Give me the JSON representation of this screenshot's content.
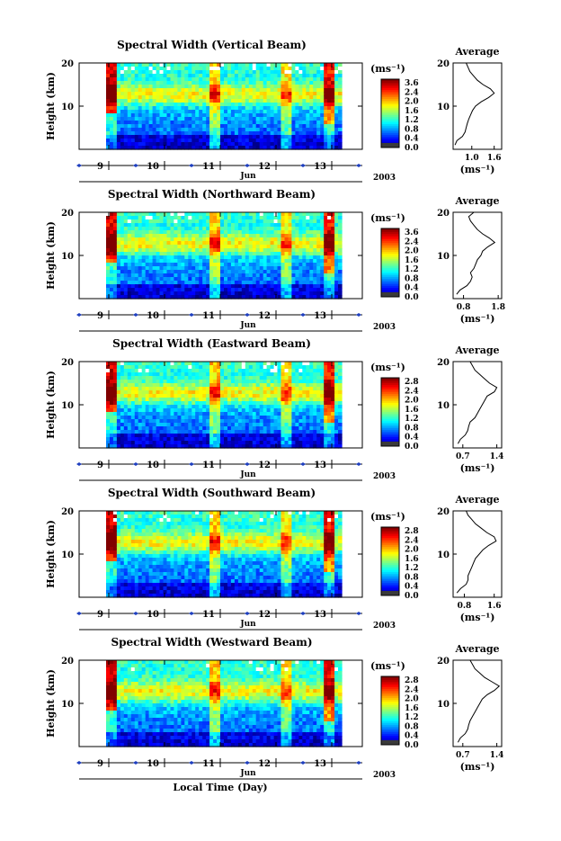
{
  "figure": {
    "xlabel_bottom": "Local Time (Day)",
    "month_label": "Jun",
    "year_label": "2003",
    "ylabel": "Height (km)",
    "colorbar_unit": "(ms⁻¹)",
    "average_title": "Average",
    "average_xlabel": "(ms⁻¹)"
  },
  "chart_data": [
    {
      "type": "heatmap",
      "title": "Spectral Width (Vertical Beam)",
      "ylabel": "Height (km)",
      "x_tick_labels": [
        "9",
        "10",
        "11",
        "12",
        "13"
      ],
      "y_tick_labels": [
        "10",
        "20"
      ],
      "colorbar_ticks": [
        "3.6",
        "2.4",
        "2.0",
        "1.6",
        "1.2",
        "0.8",
        "0.4",
        "0.0"
      ],
      "average": {
        "title": "Average",
        "xlabel": "(ms⁻¹)",
        "x_tick_labels": [
          "1.0",
          "1.6"
        ],
        "xlim": [
          0.5,
          1.8
        ],
        "heights": [
          1,
          2,
          3,
          4,
          5,
          6,
          7,
          8,
          9,
          10,
          11,
          12,
          13,
          14,
          15,
          16,
          17,
          18,
          19,
          20
        ],
        "values": [
          0.55,
          0.6,
          0.75,
          0.82,
          0.85,
          0.88,
          0.92,
          0.97,
          1.02,
          1.1,
          1.25,
          1.45,
          1.6,
          1.5,
          1.3,
          1.15,
          1.05,
          0.95,
          0.9,
          0.85
        ]
      }
    },
    {
      "type": "heatmap",
      "title": "Spectral Width (Northward Beam)",
      "ylabel": "Height (km)",
      "x_tick_labels": [
        "9",
        "10",
        "11",
        "12",
        "13"
      ],
      "y_tick_labels": [
        "10",
        "20"
      ],
      "colorbar_ticks": [
        "3.6",
        "2.4",
        "2.0",
        "1.6",
        "1.2",
        "0.8",
        "0.4",
        "0.0"
      ],
      "average": {
        "title": "Average",
        "xlabel": "(ms⁻¹)",
        "x_tick_labels": [
          "0.8",
          "1.8"
        ],
        "xlim": [
          0.5,
          1.9
        ],
        "heights": [
          1,
          2,
          3,
          4,
          5,
          6,
          7,
          8,
          9,
          10,
          11,
          12,
          13,
          14,
          15,
          16,
          17,
          18,
          19,
          20
        ],
        "values": [
          0.6,
          0.7,
          0.9,
          1.0,
          1.05,
          1.0,
          1.1,
          1.15,
          1.2,
          1.3,
          1.35,
          1.5,
          1.7,
          1.55,
          1.35,
          1.2,
          1.1,
          1.0,
          0.95,
          1.1
        ]
      }
    },
    {
      "type": "heatmap",
      "title": "Spectral Width (Eastward Beam)",
      "ylabel": "Height (km)",
      "x_tick_labels": [
        "9",
        "10",
        "11",
        "12",
        "13"
      ],
      "y_tick_labels": [
        "10",
        "20"
      ],
      "colorbar_ticks": [
        "2.8",
        "2.4",
        "2.0",
        "1.6",
        "1.2",
        "0.8",
        "0.4",
        "0.0"
      ],
      "average": {
        "title": "Average",
        "xlabel": "(ms⁻¹)",
        "x_tick_labels": [
          "0.7",
          "1.4"
        ],
        "xlim": [
          0.5,
          1.5
        ],
        "heights": [
          1,
          2,
          3,
          4,
          5,
          6,
          7,
          8,
          9,
          10,
          11,
          12,
          13,
          14,
          15,
          16,
          17,
          18,
          19,
          20
        ],
        "values": [
          0.6,
          0.65,
          0.75,
          0.8,
          0.82,
          0.85,
          0.95,
          1.0,
          1.05,
          1.1,
          1.15,
          1.2,
          1.35,
          1.4,
          1.25,
          1.15,
          1.05,
          0.95,
          0.9,
          0.85
        ]
      }
    },
    {
      "type": "heatmap",
      "title": "Spectral Width (Southward Beam)",
      "ylabel": "Height (km)",
      "x_tick_labels": [
        "9",
        "10",
        "11",
        "12",
        "13"
      ],
      "y_tick_labels": [
        "10",
        "20"
      ],
      "colorbar_ticks": [
        "2.8",
        "2.4",
        "2.0",
        "1.6",
        "1.2",
        "0.8",
        "0.4",
        "0.0"
      ],
      "average": {
        "title": "Average",
        "xlabel": "(ms⁻¹)",
        "x_tick_labels": [
          "0.8",
          "1.6"
        ],
        "xlim": [
          0.5,
          1.8
        ],
        "heights": [
          1,
          2,
          3,
          4,
          5,
          6,
          7,
          8,
          9,
          10,
          11,
          12,
          13,
          14,
          15,
          16,
          17,
          18,
          19,
          20
        ],
        "values": [
          0.6,
          0.7,
          0.85,
          0.9,
          0.9,
          0.95,
          1.0,
          1.05,
          1.1,
          1.2,
          1.3,
          1.45,
          1.65,
          1.6,
          1.4,
          1.25,
          1.1,
          1.0,
          0.9,
          0.85
        ]
      }
    },
    {
      "type": "heatmap",
      "title": "Spectral Width (Westward Beam)",
      "ylabel": "Height (km)",
      "x_tick_labels": [
        "9",
        "10",
        "11",
        "12",
        "13"
      ],
      "y_tick_labels": [
        "10",
        "20"
      ],
      "colorbar_ticks": [
        "2.8",
        "2.4",
        "2.0",
        "1.6",
        "1.2",
        "0.8",
        "0.4",
        "0.0"
      ],
      "average": {
        "title": "Average",
        "xlabel": "(ms⁻¹)",
        "x_tick_labels": [
          "0.7",
          "1.4"
        ],
        "xlim": [
          0.5,
          1.5
        ],
        "heights": [
          1,
          2,
          3,
          4,
          5,
          6,
          7,
          8,
          9,
          10,
          11,
          12,
          13,
          14,
          15,
          16,
          17,
          18,
          19,
          20
        ],
        "values": [
          0.6,
          0.65,
          0.75,
          0.8,
          0.82,
          0.85,
          0.9,
          0.95,
          1.0,
          1.05,
          1.1,
          1.2,
          1.35,
          1.45,
          1.3,
          1.15,
          1.05,
          0.95,
          0.9,
          0.85
        ]
      }
    }
  ]
}
